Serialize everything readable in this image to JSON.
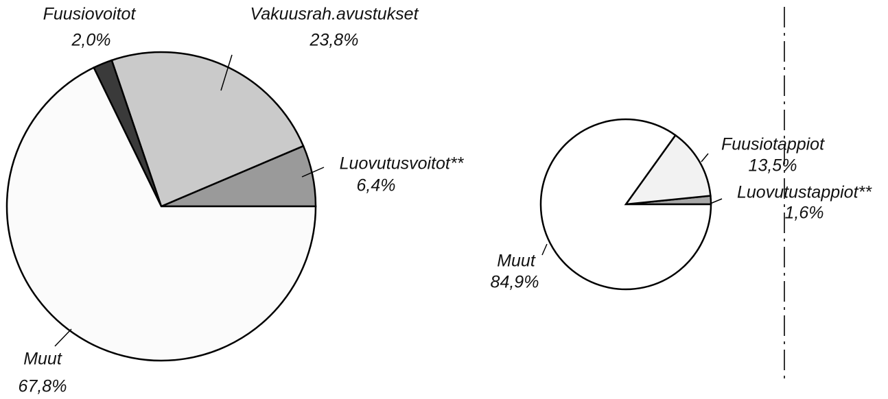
{
  "chart_data": [
    {
      "type": "pie",
      "categories": [
        "Luovutusvoitot**",
        "Vakuusrah.avustukset",
        "Fuusiovoitot",
        "Muut"
      ],
      "values": [
        6.4,
        23.8,
        2.0,
        67.8
      ],
      "value_labels": [
        "6,4%",
        "23,8%",
        "2,0%",
        "67,8%"
      ],
      "colors": [
        "#9a9a9a",
        "#cacaca",
        "#3a3a3a",
        "#fbfbfb"
      ]
    },
    {
      "type": "pie",
      "categories": [
        "Luovutustappiot**",
        "Fuusiotappiot",
        "Muut"
      ],
      "values": [
        1.6,
        13.5,
        84.9
      ],
      "value_labels": [
        "1,6%",
        "13,5%",
        "84,9%"
      ],
      "colors": [
        "#a8a8a8",
        "#f2f2f2",
        "#ffffff"
      ]
    }
  ]
}
